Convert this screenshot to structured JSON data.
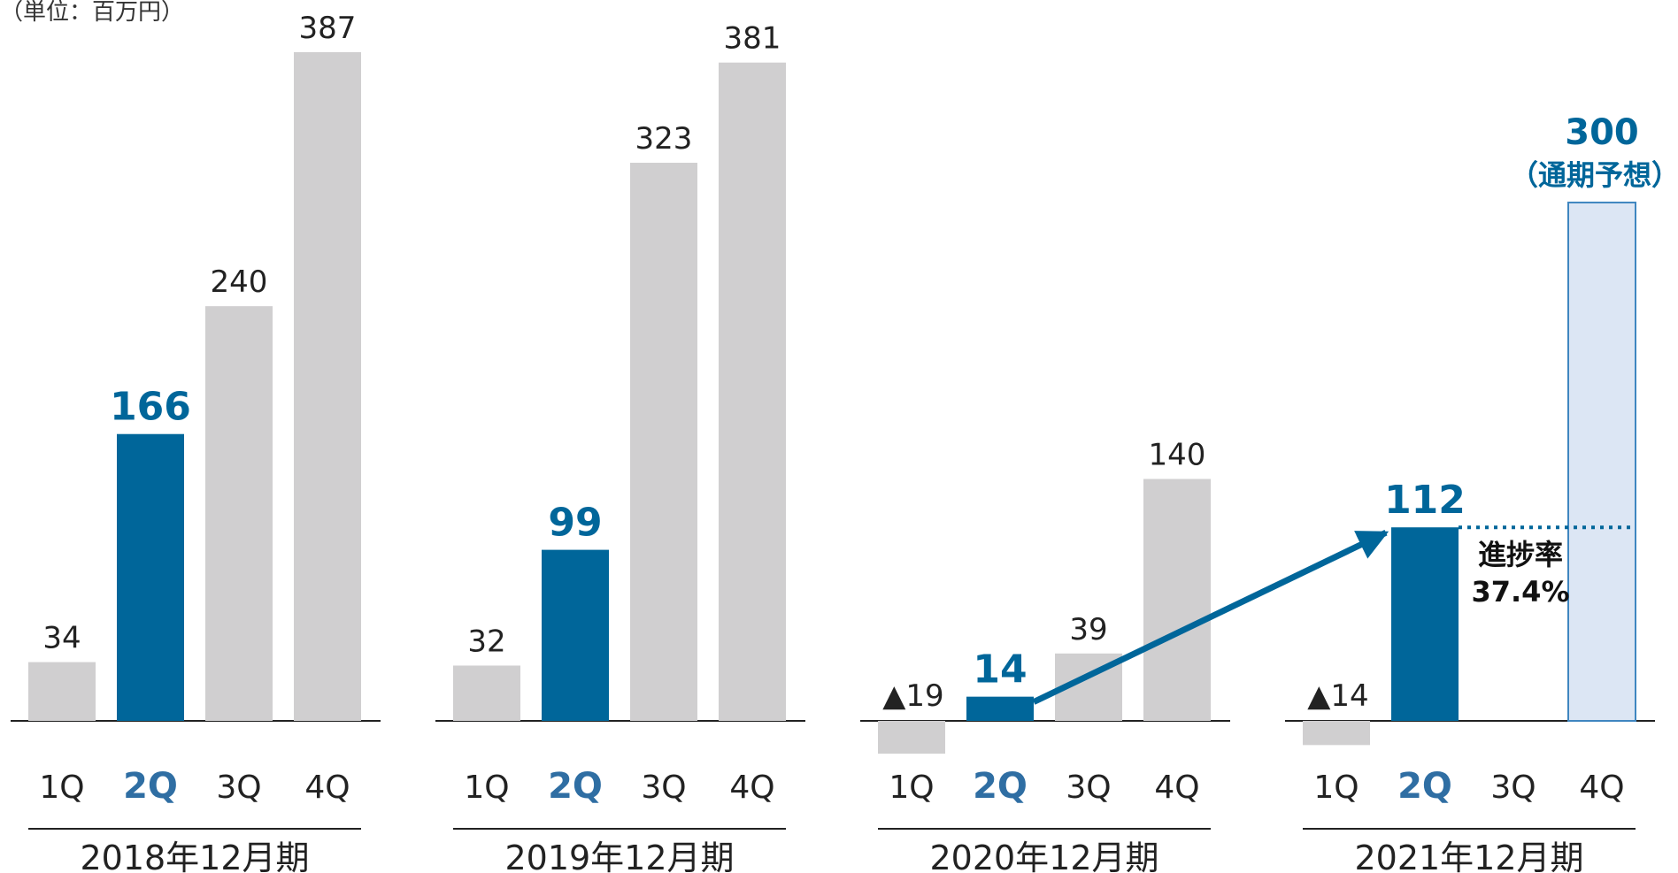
{
  "chart_data": {
    "type": "bar",
    "unit_label": "（単位：百万円）",
    "groups": [
      {
        "period": "2018年12月期",
        "bars": [
          {
            "q": "1Q",
            "value": 34,
            "label": "34"
          },
          {
            "q": "2Q",
            "value": 166,
            "label": "166",
            "highlight": true
          },
          {
            "q": "3Q",
            "value": 240,
            "label": "240"
          },
          {
            "q": "4Q",
            "value": 387,
            "label": "387"
          }
        ]
      },
      {
        "period": "2019年12月期",
        "bars": [
          {
            "q": "1Q",
            "value": 32,
            "label": "32"
          },
          {
            "q": "2Q",
            "value": 99,
            "label": "99",
            "highlight": true
          },
          {
            "q": "3Q",
            "value": 323,
            "label": "323"
          },
          {
            "q": "4Q",
            "value": 381,
            "label": "381"
          }
        ]
      },
      {
        "period": "2020年12月期",
        "bars": [
          {
            "q": "1Q",
            "value": -19,
            "label": "▲19"
          },
          {
            "q": "2Q",
            "value": 14,
            "label": "14",
            "highlight": true
          },
          {
            "q": "3Q",
            "value": 39,
            "label": "39"
          },
          {
            "q": "4Q",
            "value": 140,
            "label": "140"
          }
        ]
      },
      {
        "period": "2021年12月期",
        "bars": [
          {
            "q": "1Q",
            "value": -14,
            "label": "▲14"
          },
          {
            "q": "2Q",
            "value": 112,
            "label": "112",
            "highlight": true
          },
          {
            "q": "3Q",
            "value": null,
            "label": ""
          },
          {
            "q": "4Q",
            "value": 300,
            "label": "300",
            "forecast": true,
            "note": "（通期予想）"
          }
        ]
      }
    ],
    "progress": {
      "label": "進捗率",
      "value": "37.4%"
    },
    "ylim": [
      -19,
      387
    ],
    "grid": false,
    "legend": "none"
  },
  "colors": {
    "bar": "#d0cfd0",
    "highlight": "#00669a",
    "forecast_fill": "#dce6f4",
    "forecast_stroke": "#3f86c0",
    "axis": "#222222"
  }
}
